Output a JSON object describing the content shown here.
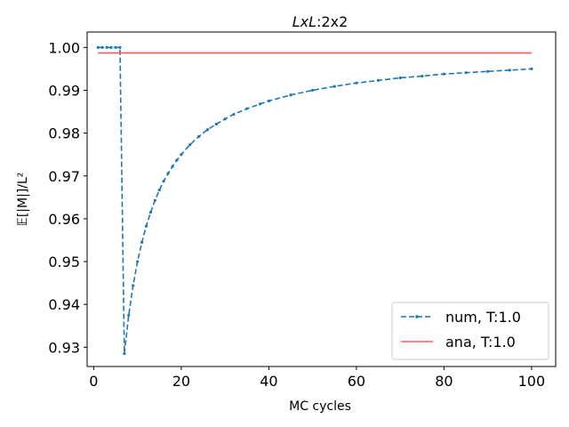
{
  "chart_data": {
    "type": "line",
    "title_prefix": "LxL",
    "title_suffix": ":2x2",
    "xlabel": "MC cycles",
    "ylabel": "𝔼[|M|]/L²",
    "xlim": [
      -1.5,
      105.5
    ],
    "ylim": [
      0.9255,
      1.0036
    ],
    "xticks": [
      0,
      20,
      40,
      60,
      80,
      100
    ],
    "yticks": [
      0.93,
      0.94,
      0.95,
      0.96,
      0.97,
      0.98,
      0.99,
      1.0
    ],
    "ytick_labels": [
      "0.93",
      "0.94",
      "0.95",
      "0.96",
      "0.97",
      "0.98",
      "0.99",
      "1.00"
    ],
    "grid": false,
    "legend_position": "lower-right",
    "series": [
      {
        "name": "num, T:1.0",
        "style": "dashed-with-dots",
        "color": "#1f77b4",
        "x": [
          1,
          2,
          3,
          4,
          5,
          6,
          7,
          8,
          9,
          10,
          11,
          12,
          13,
          14,
          15,
          16,
          17,
          18,
          19,
          20,
          22,
          24,
          26,
          28,
          30,
          32,
          35,
          38,
          40,
          45,
          50,
          55,
          60,
          65,
          70,
          75,
          80,
          85,
          90,
          95,
          100
        ],
        "y": [
          1.0,
          1.0,
          1.0,
          1.0,
          1.0,
          1.0,
          0.9285,
          0.9375,
          0.9444,
          0.95,
          0.9545,
          0.9583,
          0.9615,
          0.9643,
          0.9667,
          0.9688,
          0.9706,
          0.9722,
          0.9737,
          0.975,
          0.9773,
          0.9792,
          0.9808,
          0.9821,
          0.9833,
          0.9844,
          0.9857,
          0.9868,
          0.9875,
          0.9889,
          0.99,
          0.9909,
          0.9917,
          0.9923,
          0.9929,
          0.9933,
          0.9938,
          0.9941,
          0.9944,
          0.9947,
          0.995
        ]
      },
      {
        "name": "ana, T:1.0",
        "style": "solid",
        "color": "#ff5a5a",
        "x": [
          1,
          100
        ],
        "y": [
          0.9987,
          0.9987
        ]
      }
    ]
  }
}
